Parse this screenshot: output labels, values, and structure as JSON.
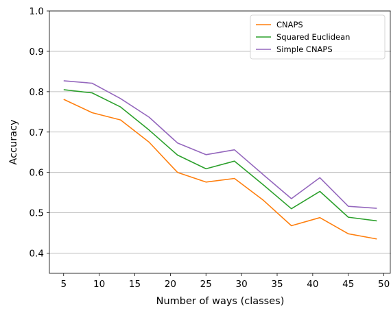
{
  "chart_data": {
    "type": "line",
    "title": "",
    "xlabel": "Number of ways (classes)",
    "ylabel": "Accuracy",
    "x": [
      5,
      9,
      13,
      17,
      21,
      25,
      29,
      33,
      37,
      41,
      45,
      49
    ],
    "xticks": [
      5,
      10,
      15,
      20,
      25,
      30,
      35,
      40,
      45,
      50
    ],
    "xtick_labels": [
      "5",
      "10",
      "15",
      "20",
      "25",
      "30",
      "35",
      "40",
      "45",
      "50"
    ],
    "yticks": [
      0.4,
      0.5,
      0.6,
      0.7,
      0.8,
      0.9,
      1.0
    ],
    "ytick_labels": [
      "0.4",
      "0.5",
      "0.6",
      "0.7",
      "0.8",
      "0.9",
      "1.0"
    ],
    "xlim": [
      3,
      51
    ],
    "ylim": [
      0.35,
      1.0
    ],
    "grid": "horizontal",
    "legend_position": "top-right",
    "series": [
      {
        "name": "CNAPS",
        "color": "#ff7f0e",
        "values": [
          0.781,
          0.748,
          0.73,
          0.675,
          0.6,
          0.576,
          0.585,
          0.532,
          0.468,
          0.488,
          0.448,
          0.435
        ]
      },
      {
        "name": "Squared Euclidean",
        "color": "#2ca02c",
        "values": [
          0.805,
          0.797,
          0.762,
          0.705,
          0.643,
          0.609,
          0.628,
          0.57,
          0.51,
          0.553,
          0.489,
          0.48
        ]
      },
      {
        "name": "Simple CNAPS",
        "color": "#9467bd",
        "values": [
          0.827,
          0.821,
          0.783,
          0.737,
          0.673,
          0.644,
          0.656,
          0.595,
          0.535,
          0.587,
          0.516,
          0.511
        ]
      }
    ]
  }
}
